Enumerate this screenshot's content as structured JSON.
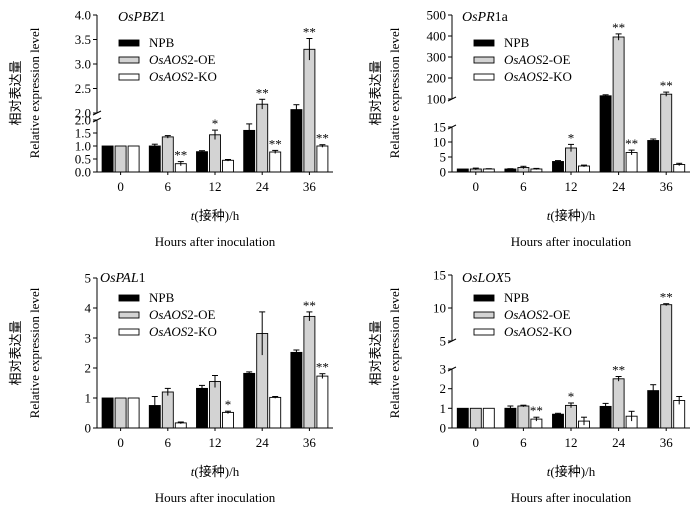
{
  "figure": {
    "xlabel_prefix": "t",
    "xlabel_rest": "(接种)/h",
    "xlabel_en": "Hours after inoculation",
    "ylabel_cn": "相对表达量",
    "ylabel_en": "Relative expression level"
  },
  "legend": {
    "items": [
      {
        "plain": "NPB",
        "italic": "",
        "suffix": ""
      },
      {
        "plain": "",
        "italic": "OsAOS",
        "suffix": "2-OE"
      },
      {
        "plain": "",
        "italic": "OsAOS",
        "suffix": "2-KO"
      }
    ]
  },
  "colors": {
    "npb": "#000000",
    "oe": "#d3d3d3",
    "ko": "#ffffff",
    "axis": "#000000"
  },
  "chart_data": [
    {
      "type": "bar",
      "title_italic": "OsPBZ",
      "title_suffix": "1",
      "categories": [
        "0",
        "6",
        "12",
        "24",
        "36"
      ],
      "series": [
        {
          "name": "NPB",
          "values": [
            1.0,
            1.0,
            0.78,
            1.6,
            2.07
          ],
          "errors": [
            0.0,
            0.07,
            0.04,
            0.25,
            0.1
          ],
          "sig": [
            "",
            "",
            "",
            "",
            ""
          ]
        },
        {
          "name": "OsAOS2-OE",
          "values": [
            1.0,
            1.35,
            1.43,
            2.18,
            3.3
          ],
          "errors": [
            0.0,
            0.05,
            0.18,
            0.1,
            0.22
          ],
          "sig": [
            "",
            "",
            "*",
            "**",
            "**"
          ]
        },
        {
          "name": "OsAOS2-KO",
          "values": [
            1.0,
            0.32,
            0.45,
            0.77,
            1.0
          ],
          "errors": [
            0.0,
            0.08,
            0.03,
            0.06,
            0.05
          ],
          "sig": [
            "",
            "**",
            "",
            "**",
            "**"
          ]
        }
      ],
      "ylabel": "相对表达量 Relative expression level",
      "y_axis": {
        "broken": true,
        "break_at": 2.0,
        "lower_range": [
          0,
          2.0
        ],
        "upper_range": [
          2.0,
          4.0
        ],
        "lower_ticks": [
          "0.0",
          "0.5",
          "1.0",
          "1.5",
          "2.0"
        ],
        "upper_ticks": [
          "2.0",
          "2.5",
          "3.0",
          "3.5",
          "4.0"
        ]
      }
    },
    {
      "type": "bar",
      "title_italic": "OsPR",
      "title_suffix": "1a",
      "categories": [
        "0",
        "6",
        "12",
        "24",
        "36"
      ],
      "series": [
        {
          "name": "NPB",
          "values": [
            1.0,
            1.0,
            3.5,
            115,
            10.5
          ],
          "errors": [
            0.0,
            0.1,
            0.3,
            5,
            0.5
          ],
          "sig": [
            "",
            "",
            "",
            "",
            ""
          ]
        },
        {
          "name": "OsAOS2-OE",
          "values": [
            1.0,
            1.5,
            8.0,
            395,
            123
          ],
          "errors": [
            0.3,
            0.4,
            1.2,
            15,
            10
          ],
          "sig": [
            "",
            "",
            "*",
            "**",
            "**"
          ]
        },
        {
          "name": "OsAOS2-KO",
          "values": [
            1.0,
            1.0,
            2.0,
            6.5,
            2.5
          ],
          "errors": [
            0.1,
            0.2,
            0.3,
            0.8,
            0.4
          ],
          "sig": [
            "",
            "",
            "",
            "**",
            ""
          ]
        }
      ],
      "ylabel": "相对表达量 Relative expression level",
      "y_axis": {
        "broken": true,
        "break_at": 15,
        "lower_range": [
          0,
          15
        ],
        "upper_range": [
          100,
          500
        ],
        "lower_ticks": [
          "0",
          "5",
          "10",
          "15"
        ],
        "upper_ticks": [
          "100",
          "200",
          "300",
          "400",
          "500"
        ]
      }
    },
    {
      "type": "bar",
      "title_italic": "OsPAL",
      "title_suffix": "1",
      "categories": [
        "0",
        "6",
        "12",
        "24",
        "36"
      ],
      "series": [
        {
          "name": "NPB",
          "values": [
            1.0,
            0.75,
            1.32,
            1.82,
            2.52
          ],
          "errors": [
            0.0,
            0.3,
            0.1,
            0.05,
            0.08
          ],
          "sig": [
            "",
            "",
            "",
            "",
            ""
          ]
        },
        {
          "name": "OsAOS2-OE",
          "values": [
            1.0,
            1.2,
            1.55,
            3.15,
            3.72
          ],
          "errors": [
            0.0,
            0.12,
            0.2,
            0.72,
            0.15
          ],
          "sig": [
            "",
            "",
            "",
            "",
            "**"
          ]
        },
        {
          "name": "OsAOS2-KO",
          "values": [
            1.0,
            0.17,
            0.52,
            1.02,
            1.73
          ],
          "errors": [
            0.0,
            0.03,
            0.04,
            0.03,
            0.08
          ],
          "sig": [
            "",
            "",
            "*",
            "",
            "**"
          ]
        }
      ],
      "ylabel": "相对表达量 Relative expression level",
      "y_axis": {
        "broken": false,
        "range": [
          0,
          5
        ],
        "ticks": [
          "0",
          "1",
          "2",
          "3",
          "4",
          "5"
        ]
      }
    },
    {
      "type": "bar",
      "title_italic": "OsLOX",
      "title_suffix": "5",
      "categories": [
        "0",
        "6",
        "12",
        "24",
        "36"
      ],
      "series": [
        {
          "name": "NPB",
          "values": [
            1.0,
            1.0,
            0.7,
            1.1,
            1.9
          ],
          "errors": [
            0.0,
            0.12,
            0.05,
            0.15,
            0.3
          ],
          "sig": [
            "",
            "",
            "",
            "",
            ""
          ]
        },
        {
          "name": "OsAOS2-OE",
          "values": [
            1.0,
            1.12,
            1.15,
            2.5,
            10.5
          ],
          "errors": [
            0.0,
            0.04,
            0.12,
            0.12,
            0.15
          ],
          "sig": [
            "",
            "",
            "*",
            "**",
            "**"
          ]
        },
        {
          "name": "OsAOS2-KO",
          "values": [
            1.0,
            0.45,
            0.35,
            0.6,
            1.4
          ],
          "errors": [
            0.0,
            0.1,
            0.2,
            0.25,
            0.2
          ],
          "sig": [
            "",
            "**",
            "",
            "",
            ""
          ]
        }
      ],
      "ylabel": "相对表达量 Relative expression level",
      "y_axis": {
        "broken": true,
        "break_at": 3,
        "lower_range": [
          0,
          3
        ],
        "upper_range": [
          5,
          15
        ],
        "lower_ticks": [
          "0",
          "1",
          "2",
          "3"
        ],
        "upper_ticks": [
          "5",
          "10",
          "15"
        ]
      }
    }
  ]
}
